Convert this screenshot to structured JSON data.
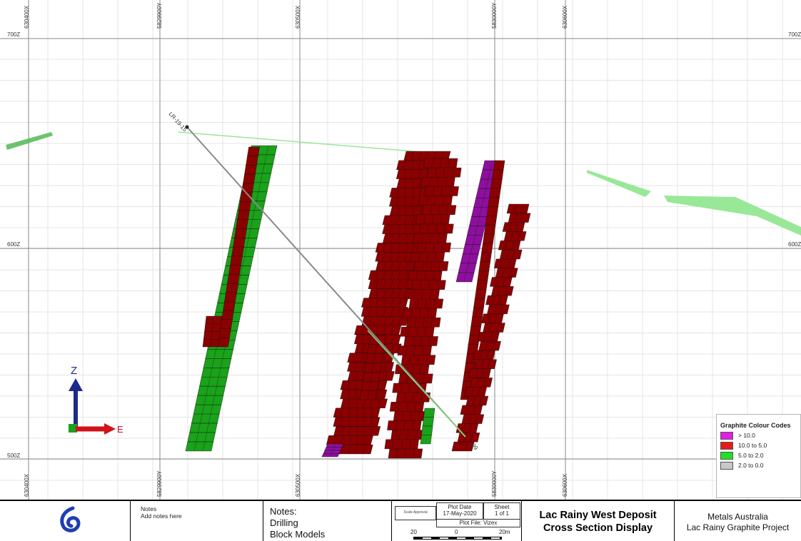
{
  "section": {
    "grid_labels_top": [
      "630400X",
      "5829900Y",
      "630500X",
      "5830000Y",
      "630600X"
    ],
    "grid_labels_bottom": [
      "630400X",
      "5829900Y",
      "630500X",
      "5830000Y",
      "630600X"
    ],
    "elev_labels_left": [
      "700Z",
      "600Z",
      "500Z"
    ],
    "elev_labels_right": [
      "700Z",
      "600Z"
    ],
    "drillhole": {
      "name": "LR-19-15",
      "end_depth": "199"
    },
    "axis_labels": {
      "z": "Z",
      "e": "E"
    }
  },
  "legend": {
    "title": "Graphite Colour Codes",
    "items": [
      {
        "label": "> 10.0",
        "color": "#e020e0"
      },
      {
        "label": "10.0 to 5.0",
        "color": "#e41b1b"
      },
      {
        "label": "5.0 to 2.0",
        "color": "#22e022"
      },
      {
        "label": "2.0 to 0.0",
        "color": "#c8c8c8"
      }
    ]
  },
  "block_colors": {
    "high": "#8e0f9e",
    "red": "#8b0000",
    "green": "#1aa21a",
    "topo": "#98e898"
  },
  "footer": {
    "notes_label": "Notes",
    "notes_text": "Add notes here",
    "notes_heading": "Notes:",
    "notes_lines": [
      "Drilling",
      "Block Models"
    ],
    "approval": "Scale Approval",
    "plot_date_label": "Plot Date",
    "plot_date": "17-May-2020",
    "sheet_label": "Sheet",
    "sheet": "1 of 1",
    "plot_file": "Plot File: Vizex",
    "scale_labels": [
      "20",
      "0",
      "20m"
    ],
    "title_lines": [
      "Lac Rainy West Deposit",
      "Cross Section Display"
    ],
    "company_lines": [
      "Metals Australia",
      "Lac Rainy Graphite Project"
    ]
  }
}
